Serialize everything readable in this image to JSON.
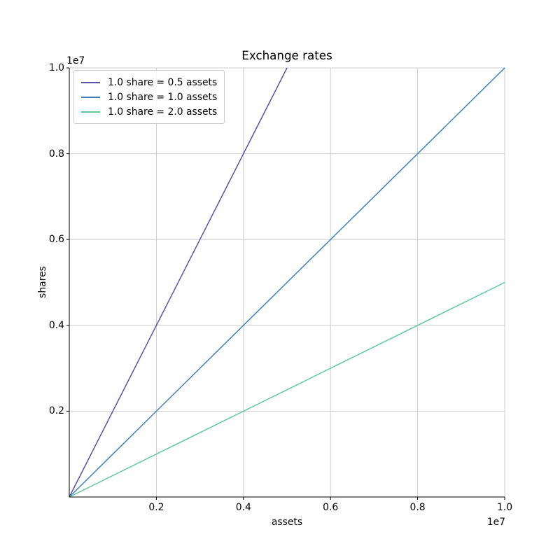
{
  "figure": {
    "title": "Exchange rates",
    "xlabel": "assets",
    "ylabel": "shares",
    "x_offset_text": "1e7",
    "y_offset_text": "1e7"
  },
  "chart_data": {
    "type": "line",
    "title": "Exchange rates",
    "xlabel": "assets",
    "ylabel": "shares",
    "xlim": [
      0,
      10000000
    ],
    "ylim": [
      0,
      10000000
    ],
    "axis_multiplier_label": "1e7",
    "grid": true,
    "grid_color": "#cccccc",
    "spine_color": "#000000",
    "text_color": "#000000",
    "background": "#ffffff",
    "legend_position": "upper left",
    "x_ticks": [
      2000000,
      4000000,
      6000000,
      8000000,
      10000000
    ],
    "x_tick_labels": [
      "0.2",
      "0.4",
      "0.6",
      "0.8",
      "1.0"
    ],
    "y_ticks": [
      2000000,
      4000000,
      6000000,
      8000000,
      10000000
    ],
    "y_tick_labels": [
      "0.2",
      "0.4",
      "0.6",
      "0.8",
      "1.0"
    ],
    "series": [
      {
        "name": "1.0 share = 0.5 assets",
        "slope_shares_per_asset": 2.0,
        "color": "#5a52a5",
        "x": [
          0,
          5000000
        ],
        "y": [
          0,
          10000000
        ]
      },
      {
        "name": "1.0 share = 1.0 assets",
        "slope_shares_per_asset": 1.0,
        "color": "#4080ba",
        "x": [
          0,
          10000000
        ],
        "y": [
          0,
          10000000
        ]
      },
      {
        "name": "1.0 share = 2.0 assets",
        "slope_shares_per_asset": 0.5,
        "color": "#62c79c",
        "x": [
          0,
          10000000
        ],
        "y": [
          0,
          5000000
        ]
      }
    ]
  }
}
